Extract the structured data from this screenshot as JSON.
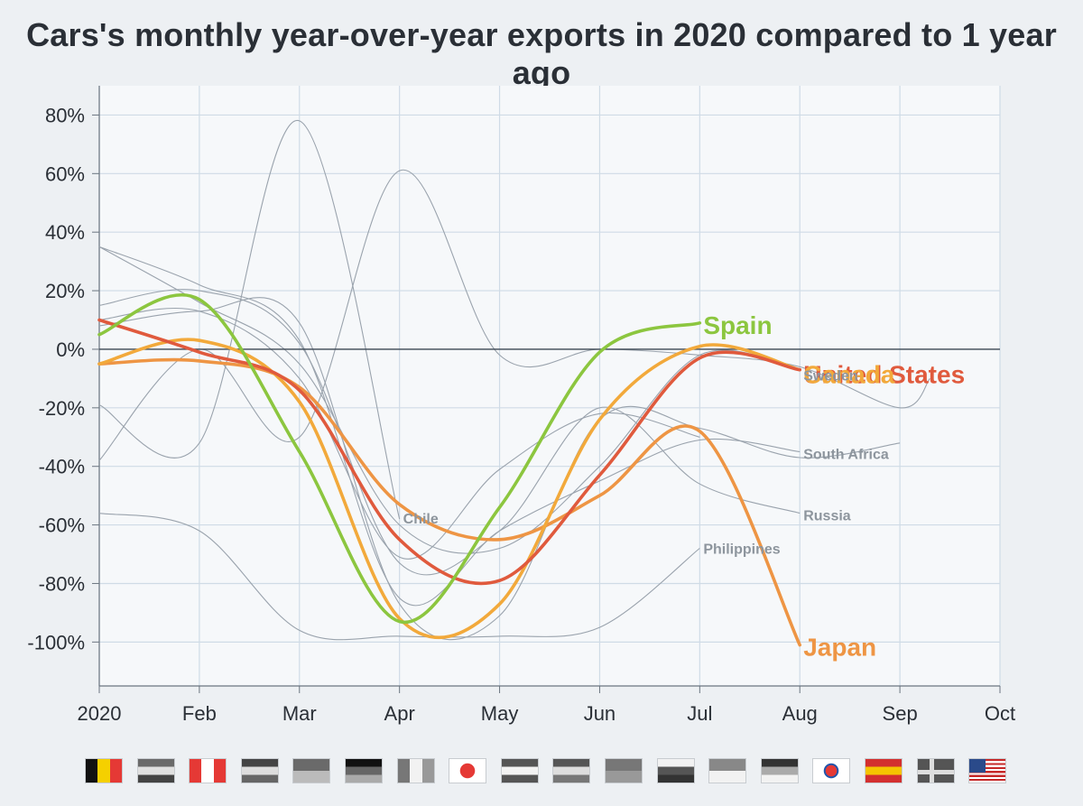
{
  "chart_data": {
    "type": "line",
    "title": "Cars's monthly year-over-year exports in 2020 compared to 1 year ago",
    "x_tick_labels": [
      "2020",
      "Feb",
      "Mar",
      "Apr",
      "May",
      "Jun",
      "Jul",
      "Aug",
      "Sep",
      "Oct"
    ],
    "y_tick_labels": [
      "80%",
      "60%",
      "40%",
      "20%",
      "0%",
      "-20%",
      "-40%",
      "-60%",
      "-80%",
      "-100%"
    ],
    "y_ticks": [
      80,
      60,
      40,
      20,
      0,
      -20,
      -40,
      -60,
      -80,
      -100
    ],
    "ylim": [
      -115,
      90
    ],
    "xlim": [
      1,
      10
    ],
    "grid": true,
    "zero_line": true,
    "series": [
      {
        "name": "Spain",
        "highlight": true,
        "color": "#8cc63f",
        "values": [
          [
            1,
            5
          ],
          [
            2,
            17
          ],
          [
            3,
            -35
          ],
          [
            4,
            -93
          ],
          [
            5,
            -54
          ],
          [
            6,
            -1
          ],
          [
            7,
            9
          ]
        ]
      },
      {
        "name": "United States",
        "highlight": true,
        "color": "#e05a3d",
        "values": [
          [
            1,
            10
          ],
          [
            2,
            -1
          ],
          [
            3,
            -14
          ],
          [
            4,
            -65
          ],
          [
            5,
            -79
          ],
          [
            6,
            -43
          ],
          [
            7,
            -3
          ],
          [
            8,
            -7
          ]
        ]
      },
      {
        "name": "Canada",
        "highlight": true,
        "color": "#f2a93b",
        "values": [
          [
            1,
            -5
          ],
          [
            2,
            3
          ],
          [
            3,
            -18
          ],
          [
            4,
            -92
          ],
          [
            5,
            -87
          ],
          [
            6,
            -24
          ],
          [
            7,
            1
          ],
          [
            8,
            -7
          ]
        ]
      },
      {
        "name": "Japan",
        "highlight": true,
        "color": "#ee9544",
        "values": [
          [
            1,
            -5
          ],
          [
            2,
            -4
          ],
          [
            3,
            -13
          ],
          [
            4,
            -53
          ],
          [
            5,
            -65
          ],
          [
            6,
            -50
          ],
          [
            7,
            -28
          ],
          [
            8,
            -101
          ]
        ]
      },
      {
        "name": "Sweden",
        "highlight": false,
        "values": [
          [
            1,
            35
          ],
          [
            2,
            16
          ],
          [
            3,
            -5
          ],
          [
            4,
            -60
          ],
          [
            5,
            -68
          ],
          [
            6,
            -40
          ],
          [
            7,
            -2
          ],
          [
            8,
            -7
          ]
        ]
      },
      {
        "name": "South Africa",
        "highlight": false,
        "values": [
          [
            1,
            35
          ],
          [
            2,
            22
          ],
          [
            3,
            3
          ],
          [
            4,
            -85
          ],
          [
            5,
            -62
          ],
          [
            6,
            -45
          ],
          [
            7,
            -31
          ],
          [
            8,
            -35
          ]
        ]
      },
      {
        "name": "Russia",
        "highlight": false,
        "values": [
          [
            1,
            15
          ],
          [
            2,
            20
          ],
          [
            3,
            2
          ],
          [
            4,
            -73
          ],
          [
            5,
            -62
          ],
          [
            6,
            -20
          ],
          [
            7,
            -46
          ],
          [
            8,
            -56
          ]
        ]
      },
      {
        "name": "Philippines",
        "highlight": false,
        "values": [
          [
            1,
            -56
          ],
          [
            2,
            -62
          ],
          [
            3,
            -96
          ],
          [
            4,
            -98
          ],
          [
            5,
            -98
          ],
          [
            6,
            -95
          ],
          [
            7,
            -68
          ]
        ]
      },
      {
        "name": "Chile",
        "highlight": false,
        "values": [
          [
            1,
            -19
          ],
          [
            2,
            -32
          ],
          [
            3,
            78
          ],
          [
            4,
            -58
          ]
        ]
      },
      {
        "name": "",
        "highlight": false,
        "values": [
          [
            1,
            -38
          ],
          [
            2,
            0
          ],
          [
            3,
            -30
          ],
          [
            4,
            61
          ],
          [
            5,
            -2
          ],
          [
            6,
            0
          ],
          [
            7,
            -2
          ],
          [
            8,
            -6
          ],
          [
            9,
            -20
          ],
          [
            9.3,
            -10
          ]
        ]
      },
      {
        "name": "",
        "highlight": false,
        "values": [
          [
            1,
            8
          ],
          [
            2,
            13
          ],
          [
            3,
            9
          ],
          [
            4,
            -87
          ],
          [
            5,
            -91
          ],
          [
            6,
            -24
          ],
          [
            7,
            -27
          ],
          [
            8,
            -37
          ],
          [
            9,
            -32
          ]
        ]
      },
      {
        "name": "",
        "highlight": false,
        "values": [
          [
            1,
            10
          ],
          [
            2,
            13
          ],
          [
            3,
            -10
          ],
          [
            4,
            -71
          ],
          [
            5,
            -41
          ],
          [
            6,
            -22
          ],
          [
            7,
            -30
          ]
        ]
      }
    ],
    "series_labels": [
      {
        "text": "Spain",
        "series": "Spain"
      },
      {
        "text": "United States",
        "series": "United States"
      },
      {
        "text": "Canada",
        "series": "Canada"
      },
      {
        "text": "Japan",
        "series": "Japan"
      },
      {
        "text": "Sweden",
        "series": "Sweden"
      },
      {
        "text": "South Africa",
        "series": "South Africa"
      },
      {
        "text": "Russia",
        "series": "Russia"
      },
      {
        "text": "Philippines",
        "series": "Philippines"
      },
      {
        "text": "Chile",
        "series": "Chile"
      }
    ]
  },
  "flags": [
    {
      "country": "belgium",
      "colors": [
        "#111111",
        "#f5d000",
        "#e53935"
      ]
    },
    {
      "country": "brazil",
      "colors": [
        "#6a6a6a",
        "#e0e0e0",
        "#444444"
      ]
    },
    {
      "country": "canada",
      "colors": [
        "#e53935",
        "#ffffff",
        "#e53935"
      ]
    },
    {
      "country": "chile",
      "colors": [
        "#444444",
        "#dddddd",
        "#666666"
      ]
    },
    {
      "country": "china",
      "colors": [
        "#6a6a6a",
        "#bbbbbb"
      ]
    },
    {
      "country": "germany",
      "colors": [
        "#111111",
        "#666666",
        "#aaaaaa"
      ]
    },
    {
      "country": "france",
      "colors": [
        "#777777",
        "#f2f2f2",
        "#999999"
      ]
    },
    {
      "country": "japan",
      "colors": [
        "#ffffff",
        "#e53935"
      ]
    },
    {
      "country": "netherlands",
      "colors": [
        "#555555",
        "#f2f2f2",
        "#555555"
      ]
    },
    {
      "country": "philippines",
      "colors": [
        "#555555",
        "#dddddd",
        "#777777"
      ]
    },
    {
      "country": "portugal",
      "colors": [
        "#777777",
        "#999999"
      ]
    },
    {
      "country": "russia",
      "colors": [
        "#f2f2f2",
        "#555555",
        "#333333"
      ]
    },
    {
      "country": "singapore",
      "colors": [
        "#888888",
        "#f2f2f2"
      ]
    },
    {
      "country": "south-africa",
      "colors": [
        "#333333",
        "#aaaaaa",
        "#f2f2f2"
      ]
    },
    {
      "country": "south-korea",
      "colors": [
        "#ffffff",
        "#e53935",
        "#2255aa",
        "#222222"
      ]
    },
    {
      "country": "spain",
      "colors": [
        "#d32f2f",
        "#f5c400",
        "#d32f2f"
      ]
    },
    {
      "country": "sweden",
      "colors": [
        "#555555",
        "#dddddd"
      ]
    },
    {
      "country": "united-states",
      "colors": [
        "#c62828",
        "#ffffff",
        "#2a4a8a"
      ]
    }
  ]
}
